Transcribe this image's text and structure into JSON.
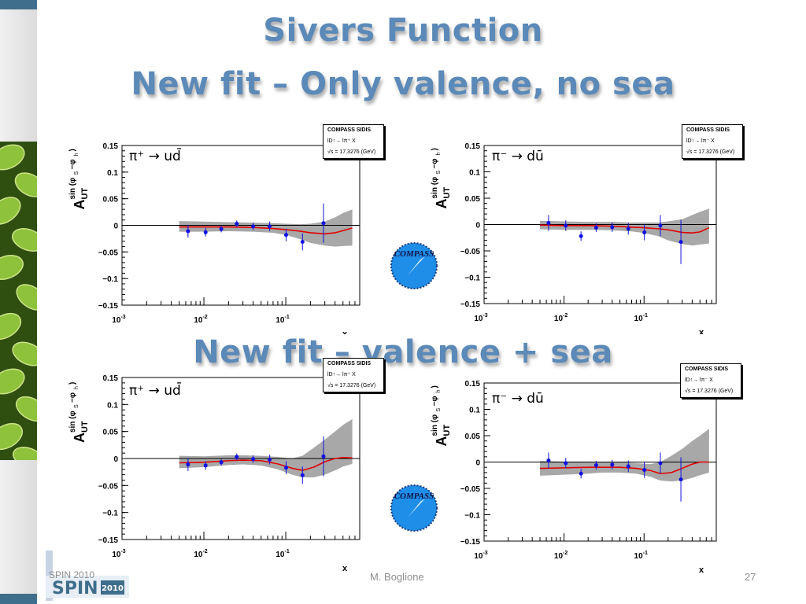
{
  "slide": {
    "title": "Sivers Function",
    "subtitle": "New fit – Only valence, no sea",
    "section2_title": "New fit –  valence + sea",
    "footer_left": "SPIN 2010",
    "footer_logo_text": "SPIN",
    "footer_logo_year": "2010",
    "author": "M. Boglione",
    "page_number": "27"
  },
  "legend": {
    "title": "COMPASS SIDIS",
    "reaction": "lD↑→ lπ⁺ X",
    "reaction_minus": "lD↑→ lπ⁻ X",
    "energy": "√s = 17.3276 (GeV)"
  },
  "logo_text": "COMPASS",
  "colors": {
    "title": "#5b89b8",
    "fit_line": "#e00000",
    "band": "#a8a8a8",
    "points": "#1010e0"
  },
  "chart_data": [
    {
      "type": "line",
      "id": "top-left",
      "channel": "π⁺ → ud̄",
      "xlabel": "x",
      "ylabel": "A_UT^sin(φS−φh)",
      "xscale": "log",
      "xlim": [
        0.001,
        0.8
      ],
      "ylim": [
        -0.15,
        0.15
      ],
      "yticks": [
        "0.15",
        "0.1",
        "0.05",
        "0",
        "−0.05",
        "−0.1",
        "−0.15"
      ],
      "points": [
        {
          "x": 0.0064,
          "y": -0.011,
          "err": 0.012
        },
        {
          "x": 0.0105,
          "y": -0.013,
          "err": 0.008
        },
        {
          "x": 0.0163,
          "y": -0.007,
          "err": 0.006
        },
        {
          "x": 0.0252,
          "y": 0.003,
          "err": 0.006
        },
        {
          "x": 0.04,
          "y": -0.002,
          "err": 0.007
        },
        {
          "x": 0.0636,
          "y": -0.002,
          "err": 0.009
        },
        {
          "x": 0.101,
          "y": -0.018,
          "err": 0.012
        },
        {
          "x": 0.16,
          "y": -0.031,
          "err": 0.016
        },
        {
          "x": 0.289,
          "y": 0.004,
          "err": 0.037
        }
      ],
      "fit": [
        [
          0.005,
          -0.003
        ],
        [
          0.01,
          -0.003
        ],
        [
          0.02,
          -0.003
        ],
        [
          0.04,
          -0.004
        ],
        [
          0.07,
          -0.006
        ],
        [
          0.1,
          -0.008
        ],
        [
          0.15,
          -0.011
        ],
        [
          0.2,
          -0.014
        ],
        [
          0.3,
          -0.016
        ],
        [
          0.4,
          -0.014
        ],
        [
          0.5,
          -0.01
        ],
        [
          0.65,
          -0.005
        ]
      ],
      "band_upper": [
        [
          0.005,
          0.008
        ],
        [
          0.01,
          0.007
        ],
        [
          0.02,
          0.006
        ],
        [
          0.04,
          0.005
        ],
        [
          0.07,
          0.004
        ],
        [
          0.1,
          0.003
        ],
        [
          0.15,
          0.002
        ],
        [
          0.2,
          0.003
        ],
        [
          0.3,
          0.007
        ],
        [
          0.4,
          0.015
        ],
        [
          0.5,
          0.023
        ],
        [
          0.65,
          0.03
        ]
      ],
      "band_lower": [
        [
          0.005,
          -0.012
        ],
        [
          0.01,
          -0.012
        ],
        [
          0.02,
          -0.011
        ],
        [
          0.04,
          -0.012
        ],
        [
          0.07,
          -0.014
        ],
        [
          0.1,
          -0.018
        ],
        [
          0.15,
          -0.026
        ],
        [
          0.2,
          -0.033
        ],
        [
          0.3,
          -0.038
        ],
        [
          0.4,
          -0.04
        ],
        [
          0.5,
          -0.039
        ],
        [
          0.65,
          -0.038
        ]
      ]
    },
    {
      "type": "line",
      "id": "top-right",
      "channel": "π⁻ → dū",
      "xlabel": "x",
      "ylabel": "A_UT^sin(φS−φh)",
      "xscale": "log",
      "xlim": [
        0.001,
        0.8
      ],
      "ylim": [
        -0.15,
        0.15
      ],
      "yticks": [
        "0.15",
        "0.1",
        "0.05",
        "0",
        "−0.05",
        "−0.1",
        "−0.15"
      ],
      "points": [
        {
          "x": 0.0064,
          "y": 0.003,
          "err": 0.015
        },
        {
          "x": 0.0105,
          "y": -0.002,
          "err": 0.01
        },
        {
          "x": 0.0163,
          "y": -0.022,
          "err": 0.009
        },
        {
          "x": 0.0252,
          "y": -0.006,
          "err": 0.008
        },
        {
          "x": 0.04,
          "y": -0.005,
          "err": 0.009
        },
        {
          "x": 0.0636,
          "y": -0.008,
          "err": 0.011
        },
        {
          "x": 0.101,
          "y": -0.015,
          "err": 0.015
        },
        {
          "x": 0.16,
          "y": -0.002,
          "err": 0.02
        },
        {
          "x": 0.289,
          "y": -0.033,
          "err": 0.042
        }
      ],
      "fit": [
        [
          0.005,
          -0.001
        ],
        [
          0.01,
          -0.002
        ],
        [
          0.02,
          -0.002
        ],
        [
          0.04,
          -0.003
        ],
        [
          0.07,
          -0.005
        ],
        [
          0.1,
          -0.006
        ],
        [
          0.15,
          -0.008
        ],
        [
          0.2,
          -0.01
        ],
        [
          0.3,
          -0.015
        ],
        [
          0.4,
          -0.016
        ],
        [
          0.5,
          -0.014
        ],
        [
          0.65,
          -0.006
        ]
      ],
      "band_upper": [
        [
          0.005,
          0.007
        ],
        [
          0.01,
          0.006
        ],
        [
          0.02,
          0.005
        ],
        [
          0.04,
          0.005
        ],
        [
          0.07,
          0.004
        ],
        [
          0.1,
          0.004
        ],
        [
          0.15,
          0.004
        ],
        [
          0.2,
          0.006
        ],
        [
          0.3,
          0.01
        ],
        [
          0.4,
          0.018
        ],
        [
          0.5,
          0.024
        ],
        [
          0.65,
          0.03
        ]
      ],
      "band_lower": [
        [
          0.005,
          -0.009
        ],
        [
          0.01,
          -0.01
        ],
        [
          0.02,
          -0.01
        ],
        [
          0.04,
          -0.011
        ],
        [
          0.07,
          -0.013
        ],
        [
          0.1,
          -0.016
        ],
        [
          0.15,
          -0.022
        ],
        [
          0.2,
          -0.03
        ],
        [
          0.3,
          -0.037
        ],
        [
          0.4,
          -0.04
        ],
        [
          0.5,
          -0.038
        ],
        [
          0.65,
          -0.036
        ]
      ]
    },
    {
      "type": "line",
      "id": "bottom-left",
      "channel": "π⁺ → ud̄",
      "xlabel": "x",
      "ylabel": "A_UT^sin(φS−φh)",
      "xscale": "log",
      "xlim": [
        0.001,
        0.8
      ],
      "ylim": [
        -0.15,
        0.15
      ],
      "yticks": [
        "0.15",
        "0.1",
        "0.05",
        "0",
        "−0.05",
        "−0.1",
        "−0.15"
      ],
      "points": [
        {
          "x": 0.0064,
          "y": -0.011,
          "err": 0.012
        },
        {
          "x": 0.0105,
          "y": -0.013,
          "err": 0.008
        },
        {
          "x": 0.0163,
          "y": -0.007,
          "err": 0.006
        },
        {
          "x": 0.0252,
          "y": 0.003,
          "err": 0.006
        },
        {
          "x": 0.04,
          "y": -0.001,
          "err": 0.007
        },
        {
          "x": 0.0636,
          "y": -0.002,
          "err": 0.009
        },
        {
          "x": 0.101,
          "y": -0.017,
          "err": 0.012
        },
        {
          "x": 0.16,
          "y": -0.031,
          "err": 0.016
        },
        {
          "x": 0.289,
          "y": 0.004,
          "err": 0.037
        }
      ],
      "fit": [
        [
          0.005,
          -0.008
        ],
        [
          0.01,
          -0.007
        ],
        [
          0.02,
          -0.004
        ],
        [
          0.03,
          -0.003
        ],
        [
          0.05,
          -0.004
        ],
        [
          0.08,
          -0.01
        ],
        [
          0.12,
          -0.018
        ],
        [
          0.16,
          -0.022
        ],
        [
          0.22,
          -0.016
        ],
        [
          0.3,
          -0.006
        ],
        [
          0.4,
          0.0
        ],
        [
          0.5,
          0.002
        ],
        [
          0.65,
          0.001
        ]
      ],
      "band_upper": [
        [
          0.005,
          0.005
        ],
        [
          0.01,
          0.004
        ],
        [
          0.02,
          0.006
        ],
        [
          0.03,
          0.006
        ],
        [
          0.05,
          0.005
        ],
        [
          0.08,
          0.003
        ],
        [
          0.12,
          0.0
        ],
        [
          0.16,
          0.005
        ],
        [
          0.22,
          0.02
        ],
        [
          0.3,
          0.035
        ],
        [
          0.4,
          0.05
        ],
        [
          0.5,
          0.062
        ],
        [
          0.65,
          0.073
        ]
      ],
      "band_lower": [
        [
          0.005,
          -0.018
        ],
        [
          0.01,
          -0.016
        ],
        [
          0.02,
          -0.012
        ],
        [
          0.03,
          -0.011
        ],
        [
          0.05,
          -0.013
        ],
        [
          0.08,
          -0.02
        ],
        [
          0.12,
          -0.03
        ],
        [
          0.16,
          -0.035
        ],
        [
          0.22,
          -0.035
        ],
        [
          0.3,
          -0.03
        ],
        [
          0.4,
          -0.022
        ],
        [
          0.5,
          -0.015
        ],
        [
          0.65,
          -0.01
        ]
      ]
    },
    {
      "type": "line",
      "id": "bottom-right",
      "channel": "π⁻ → dū",
      "xlabel": "x",
      "ylabel": "A_UT^sin(φS−φh)",
      "xscale": "log",
      "xlim": [
        0.001,
        0.8
      ],
      "ylim": [
        -0.15,
        0.15
      ],
      "yticks": [
        "0.15",
        "0.1",
        "0.05",
        "0",
        "−0.05",
        "−0.1",
        "−0.15"
      ],
      "points": [
        {
          "x": 0.0064,
          "y": 0.003,
          "err": 0.015
        },
        {
          "x": 0.0105,
          "y": -0.002,
          "err": 0.01
        },
        {
          "x": 0.0163,
          "y": -0.022,
          "err": 0.009
        },
        {
          "x": 0.0252,
          "y": -0.006,
          "err": 0.008
        },
        {
          "x": 0.04,
          "y": -0.005,
          "err": 0.009
        },
        {
          "x": 0.0636,
          "y": -0.008,
          "err": 0.011
        },
        {
          "x": 0.101,
          "y": -0.015,
          "err": 0.015
        },
        {
          "x": 0.16,
          "y": -0.002,
          "err": 0.02
        },
        {
          "x": 0.289,
          "y": -0.033,
          "err": 0.042
        }
      ],
      "fit": [
        [
          0.005,
          -0.012
        ],
        [
          0.01,
          -0.011
        ],
        [
          0.02,
          -0.01
        ],
        [
          0.03,
          -0.01
        ],
        [
          0.05,
          -0.01
        ],
        [
          0.08,
          -0.012
        ],
        [
          0.12,
          -0.016
        ],
        [
          0.16,
          -0.022
        ],
        [
          0.22,
          -0.02
        ],
        [
          0.3,
          -0.012
        ],
        [
          0.4,
          -0.004
        ],
        [
          0.5,
          0.0
        ],
        [
          0.65,
          0.0
        ]
      ],
      "band_upper": [
        [
          0.005,
          0.002
        ],
        [
          0.01,
          0.001
        ],
        [
          0.02,
          0.001
        ],
        [
          0.03,
          0.0
        ],
        [
          0.05,
          0.0
        ],
        [
          0.08,
          -0.002
        ],
        [
          0.12,
          -0.004
        ],
        [
          0.16,
          0.0
        ],
        [
          0.22,
          0.012
        ],
        [
          0.3,
          0.025
        ],
        [
          0.4,
          0.04
        ],
        [
          0.5,
          0.05
        ],
        [
          0.65,
          0.063
        ]
      ],
      "band_lower": [
        [
          0.005,
          -0.026
        ],
        [
          0.01,
          -0.024
        ],
        [
          0.02,
          -0.022
        ],
        [
          0.03,
          -0.02
        ],
        [
          0.05,
          -0.02
        ],
        [
          0.08,
          -0.022
        ],
        [
          0.12,
          -0.028
        ],
        [
          0.16,
          -0.035
        ],
        [
          0.22,
          -0.037
        ],
        [
          0.3,
          -0.035
        ],
        [
          0.4,
          -0.03
        ],
        [
          0.5,
          -0.025
        ],
        [
          0.65,
          -0.02
        ]
      ]
    }
  ]
}
